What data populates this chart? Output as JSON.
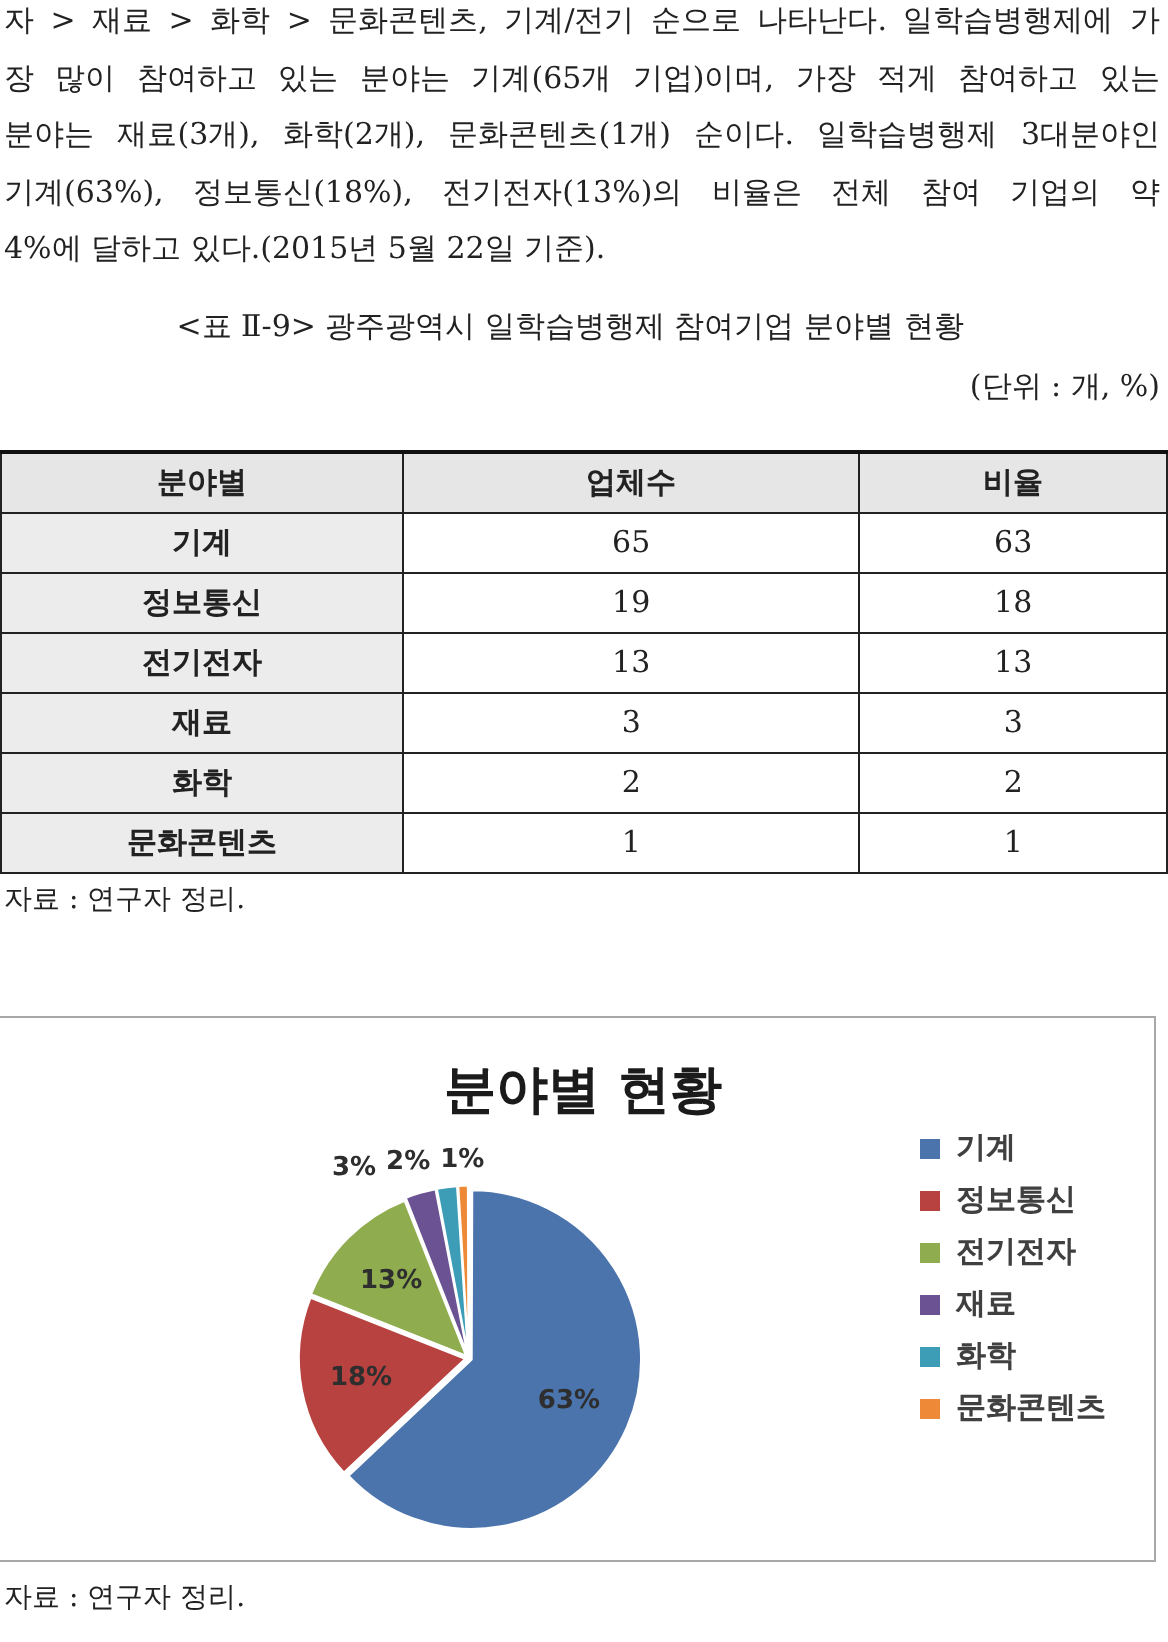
{
  "chart_data": [
    {
      "type": "other",
      "title": "<표 Ⅱ-9> 광주광역시 일학습병행제 참여기업 분야별 현황",
      "subtitle": "(단위 : 개, %)",
      "xlabel": "분야별",
      "categories": [
        "기계",
        "정보통신",
        "전기전자",
        "재료",
        "화학",
        "문화콘텐츠"
      ],
      "series": [
        {
          "name": "업체수",
          "values": [
            65,
            19,
            13,
            3,
            2,
            1
          ]
        },
        {
          "name": "비율",
          "values": [
            63,
            18,
            13,
            3,
            2,
            1
          ]
        }
      ],
      "data_labels": true,
      "annotations": [
        "자 > 재료 > 화학 > 문화콘텐츠, 기계/전기 순으로 나타난다. 일학습병행제에 가",
        "장 많이 참여하고 있는 분야는 기계(65개 기업)이며, 가장 적게 참여하고 있는",
        "분야는 재료(3개), 화학(2개), 문화콘텐츠(1개) 순이다. 일학습병행제 3대분야인",
        "기계(63%), 정보통신(18%), 전기전자(13%)의 비율은 전체 참여 기업의 약",
        "4%에 달하고 있다.(2015년 5월 22일 기준).",
        "자료 : 연구자 정리."
      ]
    },
    {
      "type": "pie",
      "title": "분야별 현황",
      "categories": [
        "기계",
        "정보통신",
        "전기전자",
        "재료",
        "화학",
        "문화콘텐츠"
      ],
      "values": [
        63,
        18,
        13,
        3,
        2,
        1
      ],
      "colors": [
        "#4a74ab",
        "#b7423f",
        "#8fad4e",
        "#6b5393",
        "#3d9db7",
        "#ee8a37"
      ],
      "value_labels": [
        "63%",
        "18%",
        "13%",
        "3%",
        "2%",
        "1%"
      ],
      "legend": "right",
      "annotations": [
        "자료 : 연구자 정리."
      ]
    }
  ]
}
